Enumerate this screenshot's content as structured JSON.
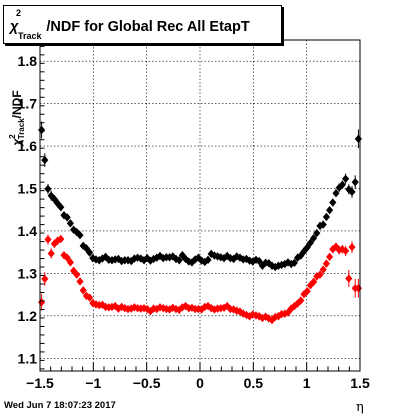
{
  "title": {
    "symbol": "χ",
    "superscript": "2",
    "subscript": "Track",
    "rest": "/NDF for Global Rec All EtapT"
  },
  "timestamp": "Wed Jun  7 18:07:23 2017",
  "chart_data": {
    "type": "scatter",
    "title": "χ²_Track/NDF for Global Rec All EtapT",
    "xlabel": "η",
    "ylabel": "χ²_Track/NDF",
    "xlim": [
      -1.5,
      1.5
    ],
    "ylim": [
      1.07,
      1.85
    ],
    "xticks": [
      -1.5,
      -1,
      -0.5,
      0,
      0.5,
      1,
      1.5
    ],
    "xtick_labels": [
      "−1.5",
      "−1",
      "−0.5",
      "0",
      "0.5",
      "1",
      "1.5"
    ],
    "yticks": [
      1.1,
      1.2,
      1.3,
      1.4,
      1.5,
      1.6,
      1.7,
      1.8
    ],
    "ytick_labels": [
      "1.1",
      "1.2",
      "1.3",
      "1.4",
      "1.5",
      "1.6",
      "1.7",
      "1.8"
    ],
    "grid": true,
    "series": [
      {
        "color": "#000000",
        "x": [
          -1.485,
          -1.455,
          -1.425,
          -1.395,
          -1.365,
          -1.335,
          -1.305,
          -1.275,
          -1.245,
          -1.215,
          -1.185,
          -1.155,
          -1.125,
          -1.095,
          -1.065,
          -1.035,
          -1.005,
          -0.975,
          -0.945,
          -0.915,
          -0.885,
          -0.855,
          -0.825,
          -0.795,
          -0.765,
          -0.735,
          -0.705,
          -0.675,
          -0.645,
          -0.615,
          -0.585,
          -0.555,
          -0.525,
          -0.495,
          -0.465,
          -0.435,
          -0.405,
          -0.375,
          -0.345,
          -0.315,
          -0.285,
          -0.255,
          -0.225,
          -0.195,
          -0.165,
          -0.135,
          -0.105,
          -0.075,
          -0.045,
          -0.015,
          0.015,
          0.045,
          0.075,
          0.105,
          0.135,
          0.165,
          0.195,
          0.225,
          0.255,
          0.285,
          0.315,
          0.345,
          0.375,
          0.405,
          0.435,
          0.465,
          0.495,
          0.525,
          0.555,
          0.585,
          0.615,
          0.645,
          0.675,
          0.705,
          0.735,
          0.765,
          0.795,
          0.825,
          0.855,
          0.885,
          0.915,
          0.945,
          0.975,
          1.005,
          1.035,
          1.065,
          1.095,
          1.125,
          1.155,
          1.185,
          1.215,
          1.245,
          1.275,
          1.305,
          1.335,
          1.365,
          1.395,
          1.425,
          1.455,
          1.485
        ],
        "y": [
          1.638,
          1.567,
          1.499,
          1.483,
          1.475,
          1.465,
          1.456,
          1.437,
          1.432,
          1.418,
          1.403,
          1.397,
          1.39,
          1.365,
          1.359,
          1.349,
          1.336,
          1.333,
          1.331,
          1.335,
          1.339,
          1.332,
          1.331,
          1.333,
          1.334,
          1.329,
          1.331,
          1.331,
          1.329,
          1.335,
          1.337,
          1.335,
          1.331,
          1.336,
          1.33,
          1.334,
          1.337,
          1.341,
          1.336,
          1.338,
          1.338,
          1.34,
          1.334,
          1.331,
          1.343,
          1.334,
          1.328,
          1.326,
          1.333,
          1.337,
          1.33,
          1.327,
          1.332,
          1.346,
          1.342,
          1.34,
          1.338,
          1.336,
          1.341,
          1.336,
          1.334,
          1.34,
          1.337,
          1.333,
          1.334,
          1.33,
          1.328,
          1.332,
          1.329,
          1.318,
          1.325,
          1.324,
          1.318,
          1.315,
          1.318,
          1.32,
          1.322,
          1.326,
          1.322,
          1.325,
          1.337,
          1.342,
          1.352,
          1.361,
          1.372,
          1.383,
          1.395,
          1.412,
          1.415,
          1.433,
          1.449,
          1.467,
          1.489,
          1.502,
          1.509,
          1.523,
          1.498,
          1.492,
          1.515,
          1.617
        ],
        "err": [
          0.02,
          0.016,
          0.012,
          0.012,
          0.01,
          0.01,
          0.009,
          0.008,
          0.008,
          0.008,
          0.008,
          0.007,
          0.007,
          0.006,
          0.006,
          0.006,
          0.006,
          0.006,
          0.006,
          0.006,
          0.006,
          0.006,
          0.006,
          0.006,
          0.006,
          0.006,
          0.006,
          0.006,
          0.006,
          0.006,
          0.006,
          0.006,
          0.006,
          0.006,
          0.006,
          0.006,
          0.006,
          0.006,
          0.006,
          0.006,
          0.006,
          0.006,
          0.006,
          0.006,
          0.006,
          0.006,
          0.006,
          0.006,
          0.006,
          0.006,
          0.006,
          0.006,
          0.006,
          0.006,
          0.006,
          0.006,
          0.006,
          0.006,
          0.006,
          0.006,
          0.006,
          0.006,
          0.006,
          0.006,
          0.006,
          0.006,
          0.006,
          0.006,
          0.006,
          0.006,
          0.006,
          0.006,
          0.006,
          0.006,
          0.006,
          0.006,
          0.006,
          0.006,
          0.006,
          0.006,
          0.006,
          0.006,
          0.006,
          0.006,
          0.006,
          0.006,
          0.007,
          0.007,
          0.008,
          0.008,
          0.008,
          0.009,
          0.009,
          0.01,
          0.01,
          0.012,
          0.012,
          0.014,
          0.016,
          0.022
        ]
      },
      {
        "color": "#ff0000",
        "x": [
          -1.485,
          -1.455,
          -1.425,
          -1.395,
          -1.365,
          -1.335,
          -1.305,
          -1.275,
          -1.245,
          -1.215,
          -1.185,
          -1.155,
          -1.125,
          -1.095,
          -1.065,
          -1.035,
          -1.005,
          -0.975,
          -0.945,
          -0.915,
          -0.885,
          -0.855,
          -0.825,
          -0.795,
          -0.765,
          -0.735,
          -0.705,
          -0.675,
          -0.645,
          -0.615,
          -0.585,
          -0.555,
          -0.525,
          -0.495,
          -0.465,
          -0.435,
          -0.405,
          -0.375,
          -0.345,
          -0.315,
          -0.285,
          -0.255,
          -0.225,
          -0.195,
          -0.165,
          -0.135,
          -0.105,
          -0.075,
          -0.045,
          -0.015,
          0.015,
          0.045,
          0.075,
          0.105,
          0.135,
          0.165,
          0.195,
          0.225,
          0.255,
          0.285,
          0.315,
          0.345,
          0.375,
          0.405,
          0.435,
          0.465,
          0.495,
          0.525,
          0.555,
          0.585,
          0.615,
          0.645,
          0.675,
          0.705,
          0.735,
          0.765,
          0.795,
          0.825,
          0.855,
          0.885,
          0.915,
          0.945,
          0.975,
          1.005,
          1.035,
          1.065,
          1.095,
          1.125,
          1.155,
          1.185,
          1.215,
          1.245,
          1.275,
          1.305,
          1.335,
          1.365,
          1.395,
          1.425,
          1.455,
          1.485
        ],
        "y": [
          1.232,
          1.287,
          1.38,
          1.347,
          1.37,
          1.377,
          1.381,
          1.343,
          1.337,
          1.326,
          1.306,
          1.297,
          1.281,
          1.26,
          1.247,
          1.243,
          1.23,
          1.227,
          1.225,
          1.226,
          1.221,
          1.22,
          1.221,
          1.223,
          1.217,
          1.221,
          1.218,
          1.216,
          1.217,
          1.22,
          1.218,
          1.217,
          1.218,
          1.216,
          1.211,
          1.217,
          1.216,
          1.22,
          1.218,
          1.216,
          1.215,
          1.219,
          1.216,
          1.214,
          1.22,
          1.223,
          1.218,
          1.219,
          1.216,
          1.216,
          1.215,
          1.221,
          1.223,
          1.218,
          1.215,
          1.217,
          1.218,
          1.219,
          1.223,
          1.216,
          1.215,
          1.212,
          1.21,
          1.205,
          1.202,
          1.199,
          1.203,
          1.201,
          1.199,
          1.195,
          1.198,
          1.194,
          1.19,
          1.197,
          1.199,
          1.204,
          1.205,
          1.208,
          1.217,
          1.223,
          1.229,
          1.236,
          1.251,
          1.258,
          1.272,
          1.28,
          1.293,
          1.297,
          1.309,
          1.323,
          1.339,
          1.357,
          1.363,
          1.355,
          1.357,
          1.353,
          1.288,
          1.362,
          1.265,
          1.265
        ],
        "err": [
          0.02,
          0.016,
          0.012,
          0.012,
          0.01,
          0.01,
          0.009,
          0.008,
          0.008,
          0.008,
          0.008,
          0.007,
          0.007,
          0.006,
          0.006,
          0.006,
          0.006,
          0.006,
          0.006,
          0.006,
          0.006,
          0.006,
          0.006,
          0.006,
          0.006,
          0.006,
          0.006,
          0.006,
          0.006,
          0.006,
          0.006,
          0.006,
          0.006,
          0.006,
          0.006,
          0.006,
          0.006,
          0.006,
          0.006,
          0.006,
          0.006,
          0.006,
          0.006,
          0.006,
          0.006,
          0.006,
          0.006,
          0.006,
          0.006,
          0.006,
          0.006,
          0.006,
          0.006,
          0.006,
          0.006,
          0.006,
          0.006,
          0.006,
          0.006,
          0.006,
          0.006,
          0.006,
          0.006,
          0.006,
          0.006,
          0.006,
          0.006,
          0.006,
          0.006,
          0.006,
          0.006,
          0.006,
          0.006,
          0.006,
          0.006,
          0.006,
          0.006,
          0.006,
          0.006,
          0.006,
          0.006,
          0.006,
          0.006,
          0.006,
          0.006,
          0.006,
          0.007,
          0.007,
          0.008,
          0.008,
          0.008,
          0.009,
          0.009,
          0.01,
          0.01,
          0.012,
          0.02,
          0.014,
          0.022,
          0.022
        ]
      }
    ]
  }
}
